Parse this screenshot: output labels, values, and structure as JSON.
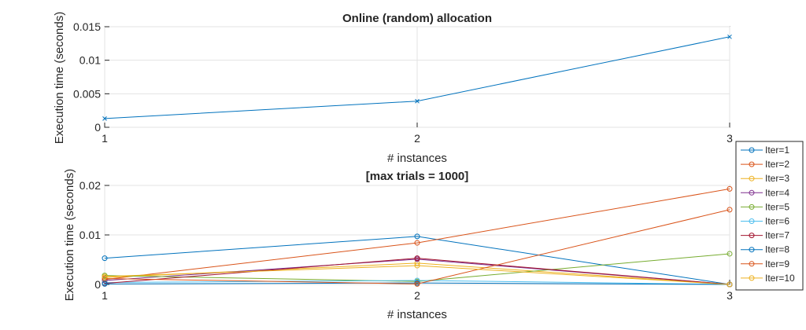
{
  "chart_data": [
    {
      "type": "line",
      "title": "Online (random) allocation",
      "xlabel": "# instances",
      "ylabel": "Execution time (seconds)",
      "x": [
        1,
        2,
        3
      ],
      "xlim": [
        1,
        3
      ],
      "ylim": [
        0,
        0.015
      ],
      "xticks": [
        "1",
        "2",
        "3"
      ],
      "yticks": [
        {
          "value": 0,
          "label": "0"
        },
        {
          "value": 0.005,
          "label": "0.005"
        },
        {
          "value": 0.01,
          "label": "0.01"
        },
        {
          "value": 0.015,
          "label": "0.015"
        }
      ],
      "grid": true,
      "marker": "x",
      "series": [
        {
          "values": [
            0.0013,
            0.0039,
            0.0135
          ],
          "color": "#0072BD"
        }
      ]
    },
    {
      "type": "line",
      "title": "[max trials = 1000]",
      "xlabel": "# instances",
      "ylabel": "Execution time (seconds)",
      "x": [
        1,
        2,
        3
      ],
      "xlim": [
        1,
        3
      ],
      "ylim": [
        0,
        0.02
      ],
      "xticks": [
        "1",
        "2",
        "3"
      ],
      "yticks": [
        {
          "value": 0,
          "label": "0"
        },
        {
          "value": 0.01,
          "label": "0.01"
        },
        {
          "value": 0.02,
          "label": "0.02"
        }
      ],
      "grid": true,
      "marker": "o",
      "legend_position": "right",
      "series": [
        {
          "name": "Iter=1",
          "values": [
            0.0053,
            0.0097,
            0.0
          ],
          "color": "#0072BD"
        },
        {
          "name": "Iter=2",
          "values": [
            0.001,
            0.0084,
            0.0193
          ],
          "color": "#D95319"
        },
        {
          "name": "Iter=3",
          "values": [
            0.0014,
            0.0043,
            0.0
          ],
          "color": "#EDB120"
        },
        {
          "name": "Iter=4",
          "values": [
            0.0008,
            0.0051,
            0.0
          ],
          "color": "#7E2F8E"
        },
        {
          "name": "Iter=5",
          "values": [
            0.0018,
            0.0006,
            0.0062
          ],
          "color": "#77AC30"
        },
        {
          "name": "Iter=6",
          "values": [
            0.0004,
            0.0008,
            0.0
          ],
          "color": "#4DBEEE"
        },
        {
          "name": "Iter=7",
          "values": [
            0.0002,
            0.0053,
            0.0
          ],
          "color": "#A2142F"
        },
        {
          "name": "Iter=8",
          "values": [
            0.0001,
            0.0003,
            0.0
          ],
          "color": "#0072BD"
        },
        {
          "name": "Iter=9",
          "values": [
            0.0012,
            0.0001,
            0.0151
          ],
          "color": "#D95319"
        },
        {
          "name": "Iter=10",
          "values": [
            0.0016,
            0.0038,
            0.0
          ],
          "color": "#EDB120"
        }
      ]
    }
  ]
}
